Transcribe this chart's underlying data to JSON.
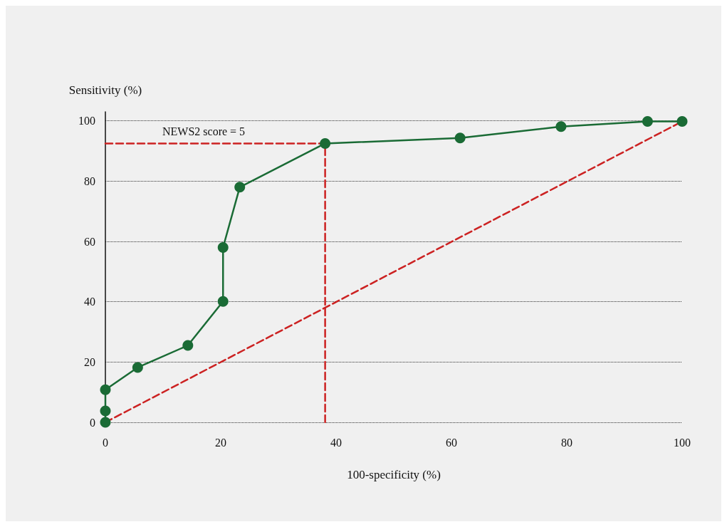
{
  "chart_data": {
    "type": "line",
    "xlabel": "100-specificity (%)",
    "ylabel": "Sensitivity (%)",
    "xlim": [
      0,
      100
    ],
    "xticks": [
      0,
      20,
      40,
      60,
      80,
      100
    ],
    "ylim": [
      0,
      103
    ],
    "yticks": [
      0,
      20,
      40,
      60,
      80,
      100
    ],
    "grid": "y",
    "marker": "circle",
    "line_style": "solid",
    "annotations": [
      "NEWS2 score = 5"
    ],
    "series": [
      {
        "color": "#1a6b35",
        "x": [
          0,
          0,
          0,
          5.6,
          14.3,
          20.4,
          20.4,
          23.3,
          38.1,
          61.5,
          79,
          94,
          100
        ],
        "values": [
          0,
          3.8,
          10.8,
          18.2,
          25.5,
          40.1,
          58,
          78,
          92.5,
          94.3,
          98.1,
          99.8,
          99.8
        ]
      },
      {
        "color": "#cc2222",
        "x": [
          0,
          100
        ],
        "values": [
          0,
          99.8
        ],
        "marker": "none",
        "line_style": "dashed"
      },
      {
        "color": "#cc2222",
        "x": [
          0,
          38.1
        ],
        "values": [
          92.5,
          92.5
        ],
        "marker": "none",
        "line_style": "dashed"
      },
      {
        "color": "#cc2222",
        "x": [
          38.1,
          38.1
        ],
        "values": [
          0,
          92.5
        ],
        "marker": "none",
        "line_style": "dashed"
      }
    ]
  }
}
